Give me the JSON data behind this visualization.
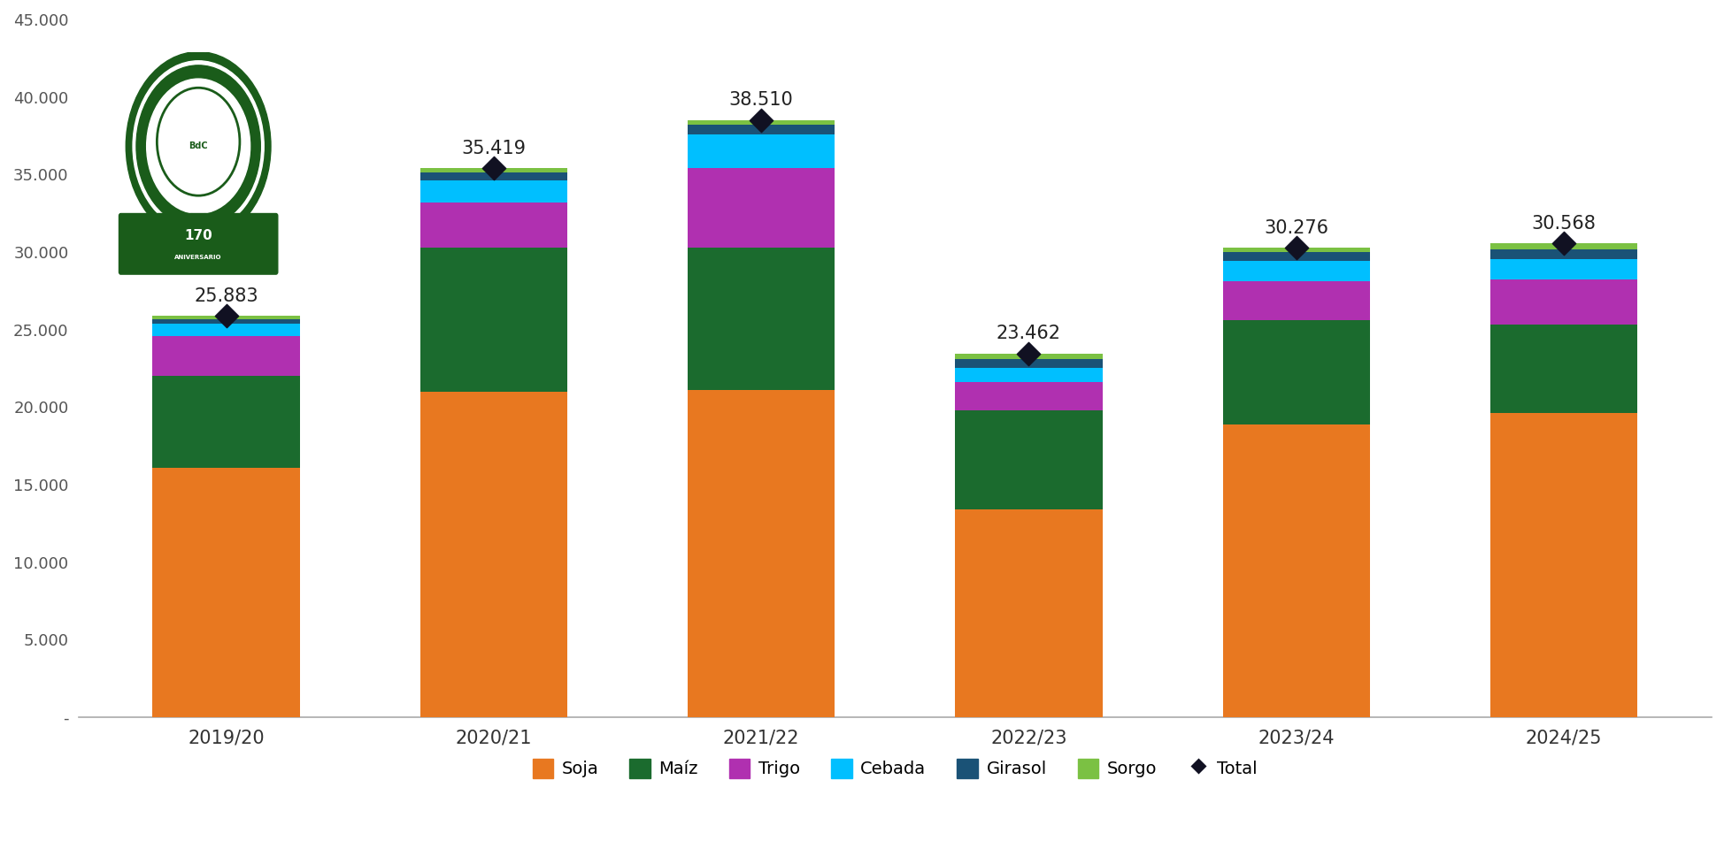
{
  "categories": [
    "2019/20",
    "2020/21",
    "2021/22",
    "2022/23",
    "2023/24",
    "2024/25"
  ],
  "soja": [
    16100,
    21000,
    21100,
    13400,
    18900,
    19600
  ],
  "maiz": [
    5900,
    9300,
    9200,
    6400,
    6700,
    5700
  ],
  "trigo": [
    2600,
    2900,
    5100,
    1800,
    2500,
    2900
  ],
  "cebada": [
    750,
    1400,
    2200,
    900,
    1300,
    1350
  ],
  "girasol": [
    333,
    519,
    600,
    600,
    576,
    618
  ],
  "sorgo": [
    200,
    300,
    310,
    362,
    300,
    400
  ],
  "totals": [
    25883,
    35419,
    38510,
    23462,
    30276,
    30568
  ],
  "colors": {
    "soja": "#E87820",
    "maiz": "#1B6B2E",
    "trigo": "#B030B0",
    "cebada": "#00BFFF",
    "girasol": "#1A5276",
    "sorgo": "#7BC143"
  },
  "ylim": [
    0,
    45000
  ],
  "yticks": [
    0,
    5000,
    10000,
    15000,
    20000,
    25000,
    30000,
    35000,
    40000,
    45000
  ],
  "ytick_labels": [
    "-",
    "5.000",
    "10.000",
    "15.000",
    "20.000",
    "25.000",
    "30.000",
    "35.000",
    "40.000",
    "45.000"
  ],
  "background_color": "#FFFFFF",
  "bar_width": 0.55
}
